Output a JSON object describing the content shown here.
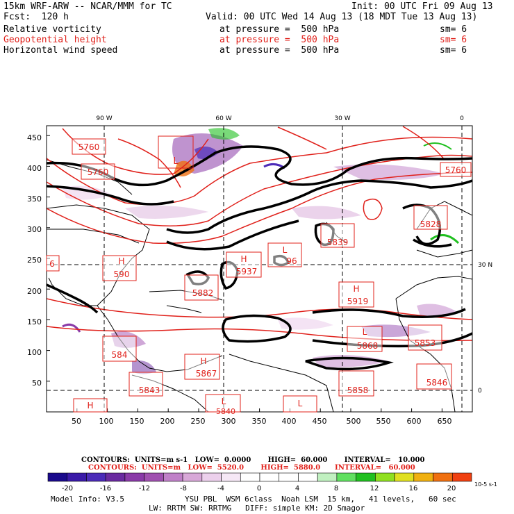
{
  "header": {
    "model": "15km WRF-ARW -- NCAR/MMM for TC",
    "init": "Init: 00 UTC Fri 09 Aug 13",
    "fcst": "Fcst:  120 h",
    "valid": "Valid: 00 UTC Wed 14 Aug 13 (18 MDT Tue 13 Aug 13)",
    "fields": [
      {
        "name": "Relative vorticity",
        "pressure": "at pressure =  500 hPa",
        "sm": "sm= 6",
        "color": "#000000"
      },
      {
        "name": "Geopotential height",
        "pressure": "at pressure =  500 hPa",
        "sm": "sm= 6",
        "color": "#e0201a"
      },
      {
        "name": "Horizontal wind speed",
        "pressure": "at pressure =  500 hPa",
        "sm": "sm= 6",
        "color": "#000000"
      }
    ]
  },
  "map": {
    "lon_labels": [
      "90 W",
      "60 W",
      "30 W",
      "0"
    ],
    "lat_labels": [
      "30 N",
      "0"
    ],
    "x_ticks": [
      "50",
      "100",
      "150",
      "200",
      "250",
      "300",
      "350",
      "400",
      "450",
      "500",
      "550",
      "600",
      "650"
    ],
    "y_ticks": [
      "450",
      "400",
      "350",
      "300",
      "250",
      "200",
      "150",
      "100",
      "50"
    ],
    "height_labels": [
      {
        "letter": "",
        "value": "5760"
      },
      {
        "letter": "",
        "value": "5760"
      },
      {
        "letter": "L",
        "value": ""
      },
      {
        "letter": "",
        "value": "5760"
      },
      {
        "letter": "",
        "value": "5828"
      },
      {
        "letter": "",
        "value": "5839"
      },
      {
        "letter": "L",
        "value": "96"
      },
      {
        "letter": "H",
        "value": "5937"
      },
      {
        "letter": "H",
        "value": "590"
      },
      {
        "letter": "",
        "value": "6"
      },
      {
        "letter": "",
        "value": "5882"
      },
      {
        "letter": "H",
        "value": "5919"
      },
      {
        "letter": "L",
        "value": "5868"
      },
      {
        "letter": "",
        "value": "5853"
      },
      {
        "letter": "",
        "value": "584"
      },
      {
        "letter": "H",
        "value": "5867"
      },
      {
        "letter": "",
        "value": "5843"
      },
      {
        "letter": "",
        "value": "5858"
      },
      {
        "letter": "",
        "value": "5846"
      },
      {
        "letter": "H",
        "value": ""
      },
      {
        "letter": "L",
        "value": "5840"
      },
      {
        "letter": "L",
        "value": ""
      }
    ]
  },
  "contours": {
    "black": "CONTOURS:  UNITS=m s-1   LOW=  0.0000       HIGH=  60.000       INTERVAL=   10.000",
    "red": "CONTOURS:  UNITS=m   LOW=  5520.0       HIGH=  5880.0      INTERVAL=   60.000"
  },
  "colorbar": {
    "labels": [
      "-20",
      "-16",
      "-12",
      "-8",
      "-4",
      "0",
      "4",
      "8",
      "12",
      "16",
      "20"
    ],
    "units": "10-5 s-1",
    "colors": [
      "#1a0a8c",
      "#3a1aa8",
      "#4b2bb8",
      "#6a2aa0",
      "#8a3aa8",
      "#a050b0",
      "#c080c8",
      "#d8a8d8",
      "#ecd0ec",
      "#f6e8f6",
      "#ffffff",
      "#ffffff",
      "#ffffff",
      "#ffffff",
      "#c0f0c0",
      "#60e060",
      "#20c020",
      "#90e020",
      "#e0e020",
      "#f0b010",
      "#f07010",
      "#f04010"
    ]
  },
  "footer": {
    "model_info": "Model Info: V3.5",
    "line1": "YSU PBL  WSM 6class  Noah LSM  15 km,   41 levels,   60 sec",
    "line2": "LW: RRTM SW: RRTMG   DIFF: simple KM: 2D Smagor"
  }
}
